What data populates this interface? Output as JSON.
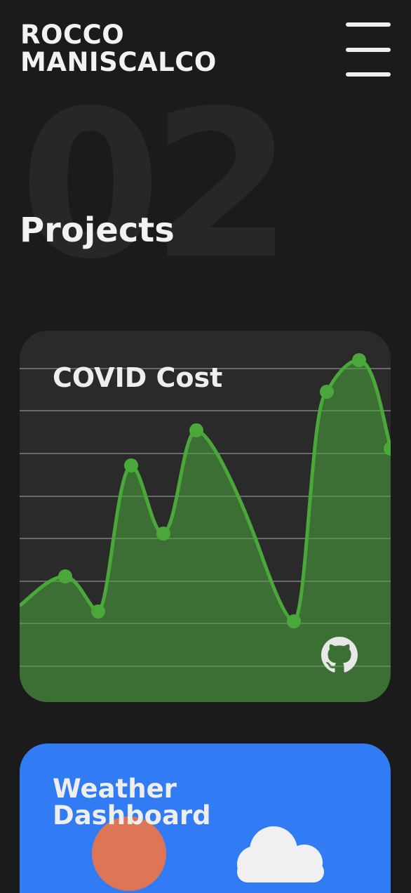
{
  "header": {
    "brand_line1": "ROCCO",
    "brand_line2": "MANISCALCO",
    "menu_icon": "hamburger-menu-icon"
  },
  "section": {
    "number": "02",
    "title": "Projects"
  },
  "projects": [
    {
      "title": "COVID Cost",
      "background_color": "#2a2a2a",
      "accent_color": "#4aa83a",
      "link_icon": "github-icon"
    },
    {
      "title": "Weather Dashboard",
      "background_color": "#317bf5",
      "sun_color": "#de7656",
      "icons": [
        "sun-icon",
        "cloud-icon"
      ]
    }
  ]
}
